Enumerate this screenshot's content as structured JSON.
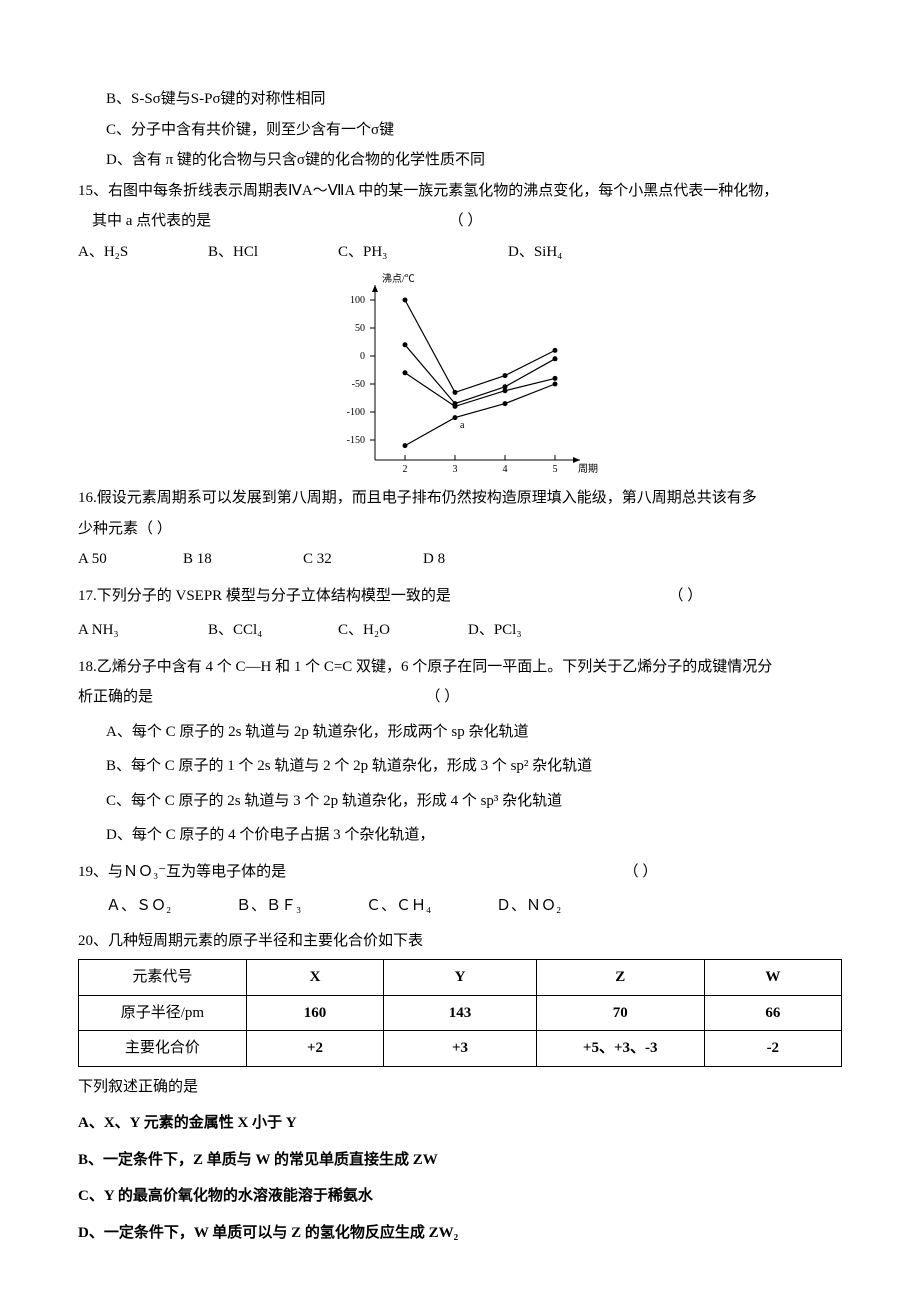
{
  "q14": {
    "optB": "B、S-Sσ键与S-Pσ键的对称性相同",
    "optC": "C、分子中含有共价键，则至少含有一个σ键",
    "optD": "D、含有 π 键的化合物与只含σ键的化合物的化学性质不同"
  },
  "q15": {
    "stem1": "15、右图中每条折线表示周期表ⅣA～ⅦA 中的某一族元素氢化物的沸点变化，每个小黑点代表一种化物，",
    "stem2": "其中 a 点代表的是",
    "paren": "（      ）",
    "optA_label": "A、H₂S",
    "optB_label": "B、HCl",
    "optC_label": "C、PH₃",
    "optD_label": "D、SiH₄"
  },
  "chart": {
    "y_label": "沸点/℃",
    "x_label": "周期",
    "y_ticks": [
      "100",
      "50",
      "0",
      "-50",
      "-100",
      "-150"
    ],
    "x_ticks": [
      "2",
      "3",
      "4",
      "5"
    ],
    "a_label": "a",
    "series_color": "#000000",
    "axis_color": "#000000",
    "series": [
      [
        [
          2,
          100
        ],
        [
          3,
          -65
        ],
        [
          4,
          -35
        ],
        [
          5,
          10
        ]
      ],
      [
        [
          2,
          20
        ],
        [
          3,
          -85
        ],
        [
          4,
          -55
        ],
        [
          5,
          -5
        ]
      ],
      [
        [
          2,
          -30
        ],
        [
          3,
          -90
        ],
        [
          4,
          -62
        ],
        [
          5,
          -40
        ]
      ],
      [
        [
          2,
          -160
        ],
        [
          3,
          -110
        ],
        [
          4,
          -85
        ],
        [
          5,
          -50
        ]
      ]
    ]
  },
  "q16": {
    "stem1": "16.假设元素周期系可以发展到第八周期，而且电子排布仍然按构造原理填入能级，第八周期总共该有多",
    "stem2": "少种元素（      ）",
    "optA": "A   50",
    "optB": "B    18",
    "optC": "C    32",
    "optD": "D     8"
  },
  "q17": {
    "stem": "17.下列分子的 VSEPR 模型与分子立体结构模型一致的是",
    "paren": "（      ）",
    "optA": "A    NH₃",
    "optB": "B、CCl₄",
    "optC": "C、H₂O",
    "optD": "D、PCl₃"
  },
  "q18": {
    "stem1": "18.乙烯分子中含有 4 个 C—H 和 1 个 C=C 双键，6 个原子在同一平面上。下列关于乙烯分子的成键情况分",
    "stem2": "析正确的是",
    "paren": "（      ）",
    "optA": "A、每个 C 原子的 2s 轨道与 2p 轨道杂化，形成两个 sp 杂化轨道",
    "optB": "B、每个 C 原子的 1 个 2s 轨道与 2 个 2p 轨道杂化，形成 3 个 sp² 杂化轨道",
    "optC": "C、每个 C 原子的 2s 轨道与 3 个 2p 轨道杂化，形成 4 个 sp³ 杂化轨道",
    "optD": "D、每个 C 原子的 4 个价电子占据 3 个杂化轨道，"
  },
  "q19": {
    "stem": "19、与ＮＯ₃⁻互为等电子体的是",
    "paren": "（      ）",
    "optA": "Ａ、ＳＯ₂",
    "optB": "Ｂ、ＢＦ₃",
    "optC": "Ｃ、ＣＨ₄",
    "optD": "Ｄ、ＮＯ₂"
  },
  "q20": {
    "stem": "20、几种短周期元素的原子半径和主要化合价如下表",
    "table": {
      "headers": [
        "元素代号",
        "X",
        "Y",
        "Z",
        "W"
      ],
      "row1": [
        "原子半径/pm",
        "160",
        "143",
        "70",
        "66"
      ],
      "row2": [
        "主要化合价",
        "+2",
        "+3",
        "+5、+3、-3",
        "-2"
      ]
    },
    "followup": "下列叙述正确的是",
    "optA": "A、X、Y 元素的金属性 X 小于 Y",
    "optB": "B、一定条件下，Z 单质与 W 的常见单质直接生成 ZW",
    "optC": "C、Y 的最高价氧化物的水溶液能溶于稀氨水",
    "optD": "D、一定条件下，W 单质可以与 Z 的氢化物反应生成 ZW₂"
  }
}
